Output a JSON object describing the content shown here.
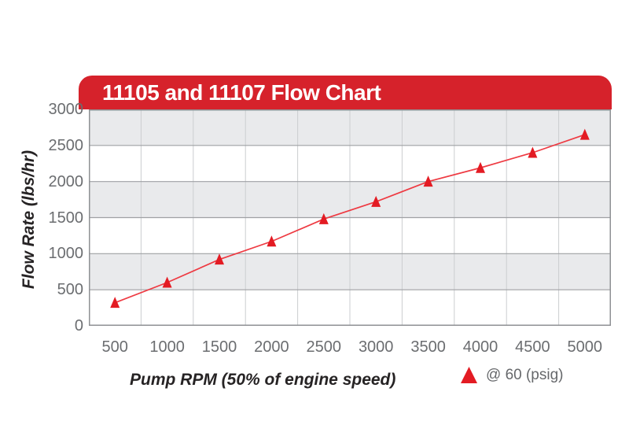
{
  "chart_data": {
    "type": "line",
    "title": "11105 and 11107 Flow Chart",
    "xlabel": "Pump RPM (50% of engine speed)",
    "ylabel": "Flow Rate (lbs/hr)",
    "categories": [
      500,
      1000,
      1500,
      2000,
      2500,
      3000,
      3500,
      4000,
      4500,
      5000
    ],
    "series": [
      {
        "name": "@ 60 (psig)",
        "marker": "triangle-up",
        "values": [
          320,
          600,
          920,
          1170,
          1480,
          1720,
          2000,
          2190,
          2400,
          2650
        ]
      }
    ],
    "ylim": [
      0,
      3000
    ],
    "yticks": [
      0,
      500,
      1000,
      1500,
      2000,
      2500,
      3000
    ],
    "grid": "horizontal and vertical gridlines with alternating gray/white row bands",
    "legend_position": "below chart, right of x-axis title"
  },
  "colors": {
    "banner_red": "#d6222b",
    "title_text": "#ffffff",
    "band_gray": "#e9eaec",
    "band_white": "#ffffff",
    "h_gridline": "#9fa1a4",
    "v_gridline": "#cbcdd0",
    "plot_border": "#8f9194",
    "line_red": "#ee3a42",
    "marker_red": "#e31b23",
    "tick_text": "#6b6d70",
    "axis_title_text": "#262324",
    "legend_text": "#66686b"
  }
}
